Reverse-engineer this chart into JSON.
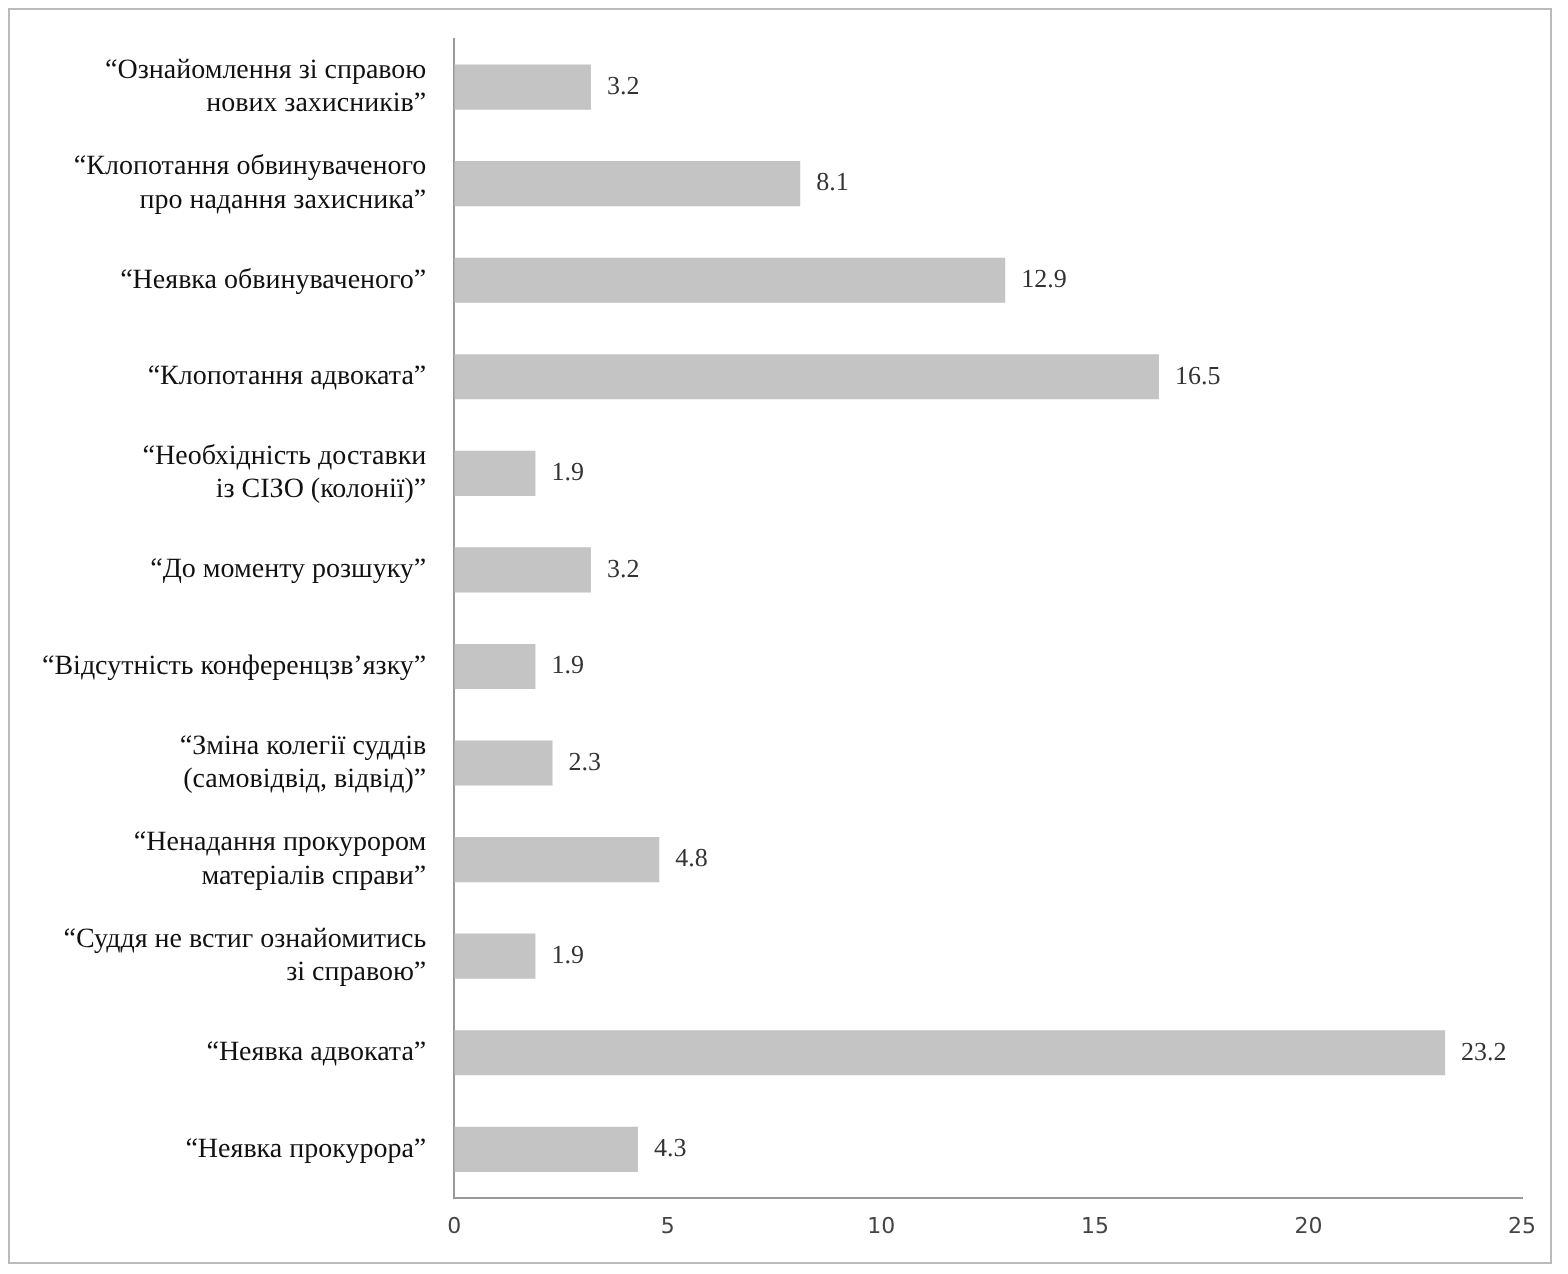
{
  "chart_data": {
    "type": "bar",
    "orientation": "horizontal",
    "categories": [
      "“Ознайомлення зі справою\nнових захисників”",
      "“Клопотання обвинуваченого\nпро надання захисника”",
      "“Неявка обвинуваченого”",
      "“Клопотання адвоката”",
      "“Необхідність доставки\nіз СІЗО (колонії)”",
      "“До моменту розшуку”",
      "“Відсутність конференцзв’язку”",
      "“Зміна колегії суддів\n(самовідвід, відвід)”",
      "“Ненадання прокурором\nматеріалів справи”",
      "“Суддя не встиг ознайомитись\nзі справою”",
      "“Неявка адвоката”",
      "“Неявка прокурора”"
    ],
    "values": [
      3.2,
      8.1,
      12.9,
      16.5,
      1.9,
      3.2,
      1.9,
      2.3,
      4.8,
      1.9,
      23.2,
      4.3
    ],
    "color": "#c4c4c4",
    "xlim": [
      0,
      25
    ],
    "xticks": [
      0,
      5,
      10,
      15,
      20,
      25
    ],
    "grid": false,
    "legend": false,
    "data_labels": true
  }
}
